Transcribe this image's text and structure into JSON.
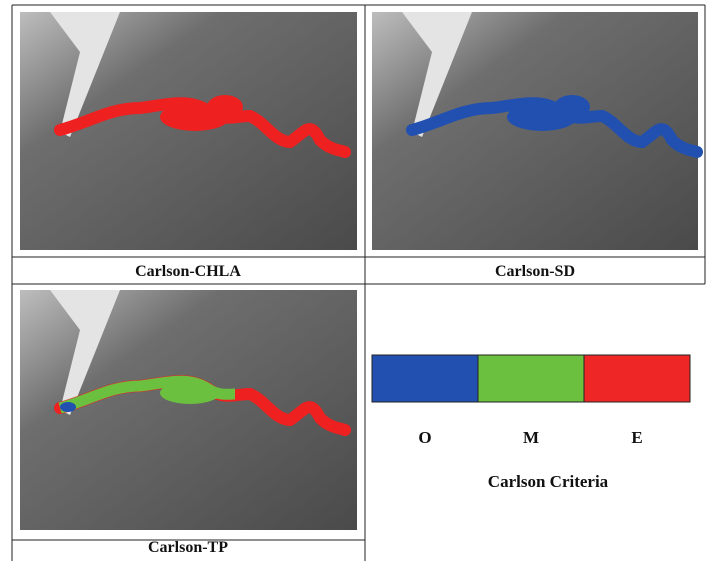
{
  "panels": [
    {
      "caption": "Carlson-CHLA"
    },
    {
      "caption": "Carlson-SD"
    },
    {
      "caption": "Carlson-TP"
    }
  ],
  "legend": {
    "labels": [
      "O",
      "M",
      "E"
    ],
    "title": "Carlson Criteria"
  }
}
